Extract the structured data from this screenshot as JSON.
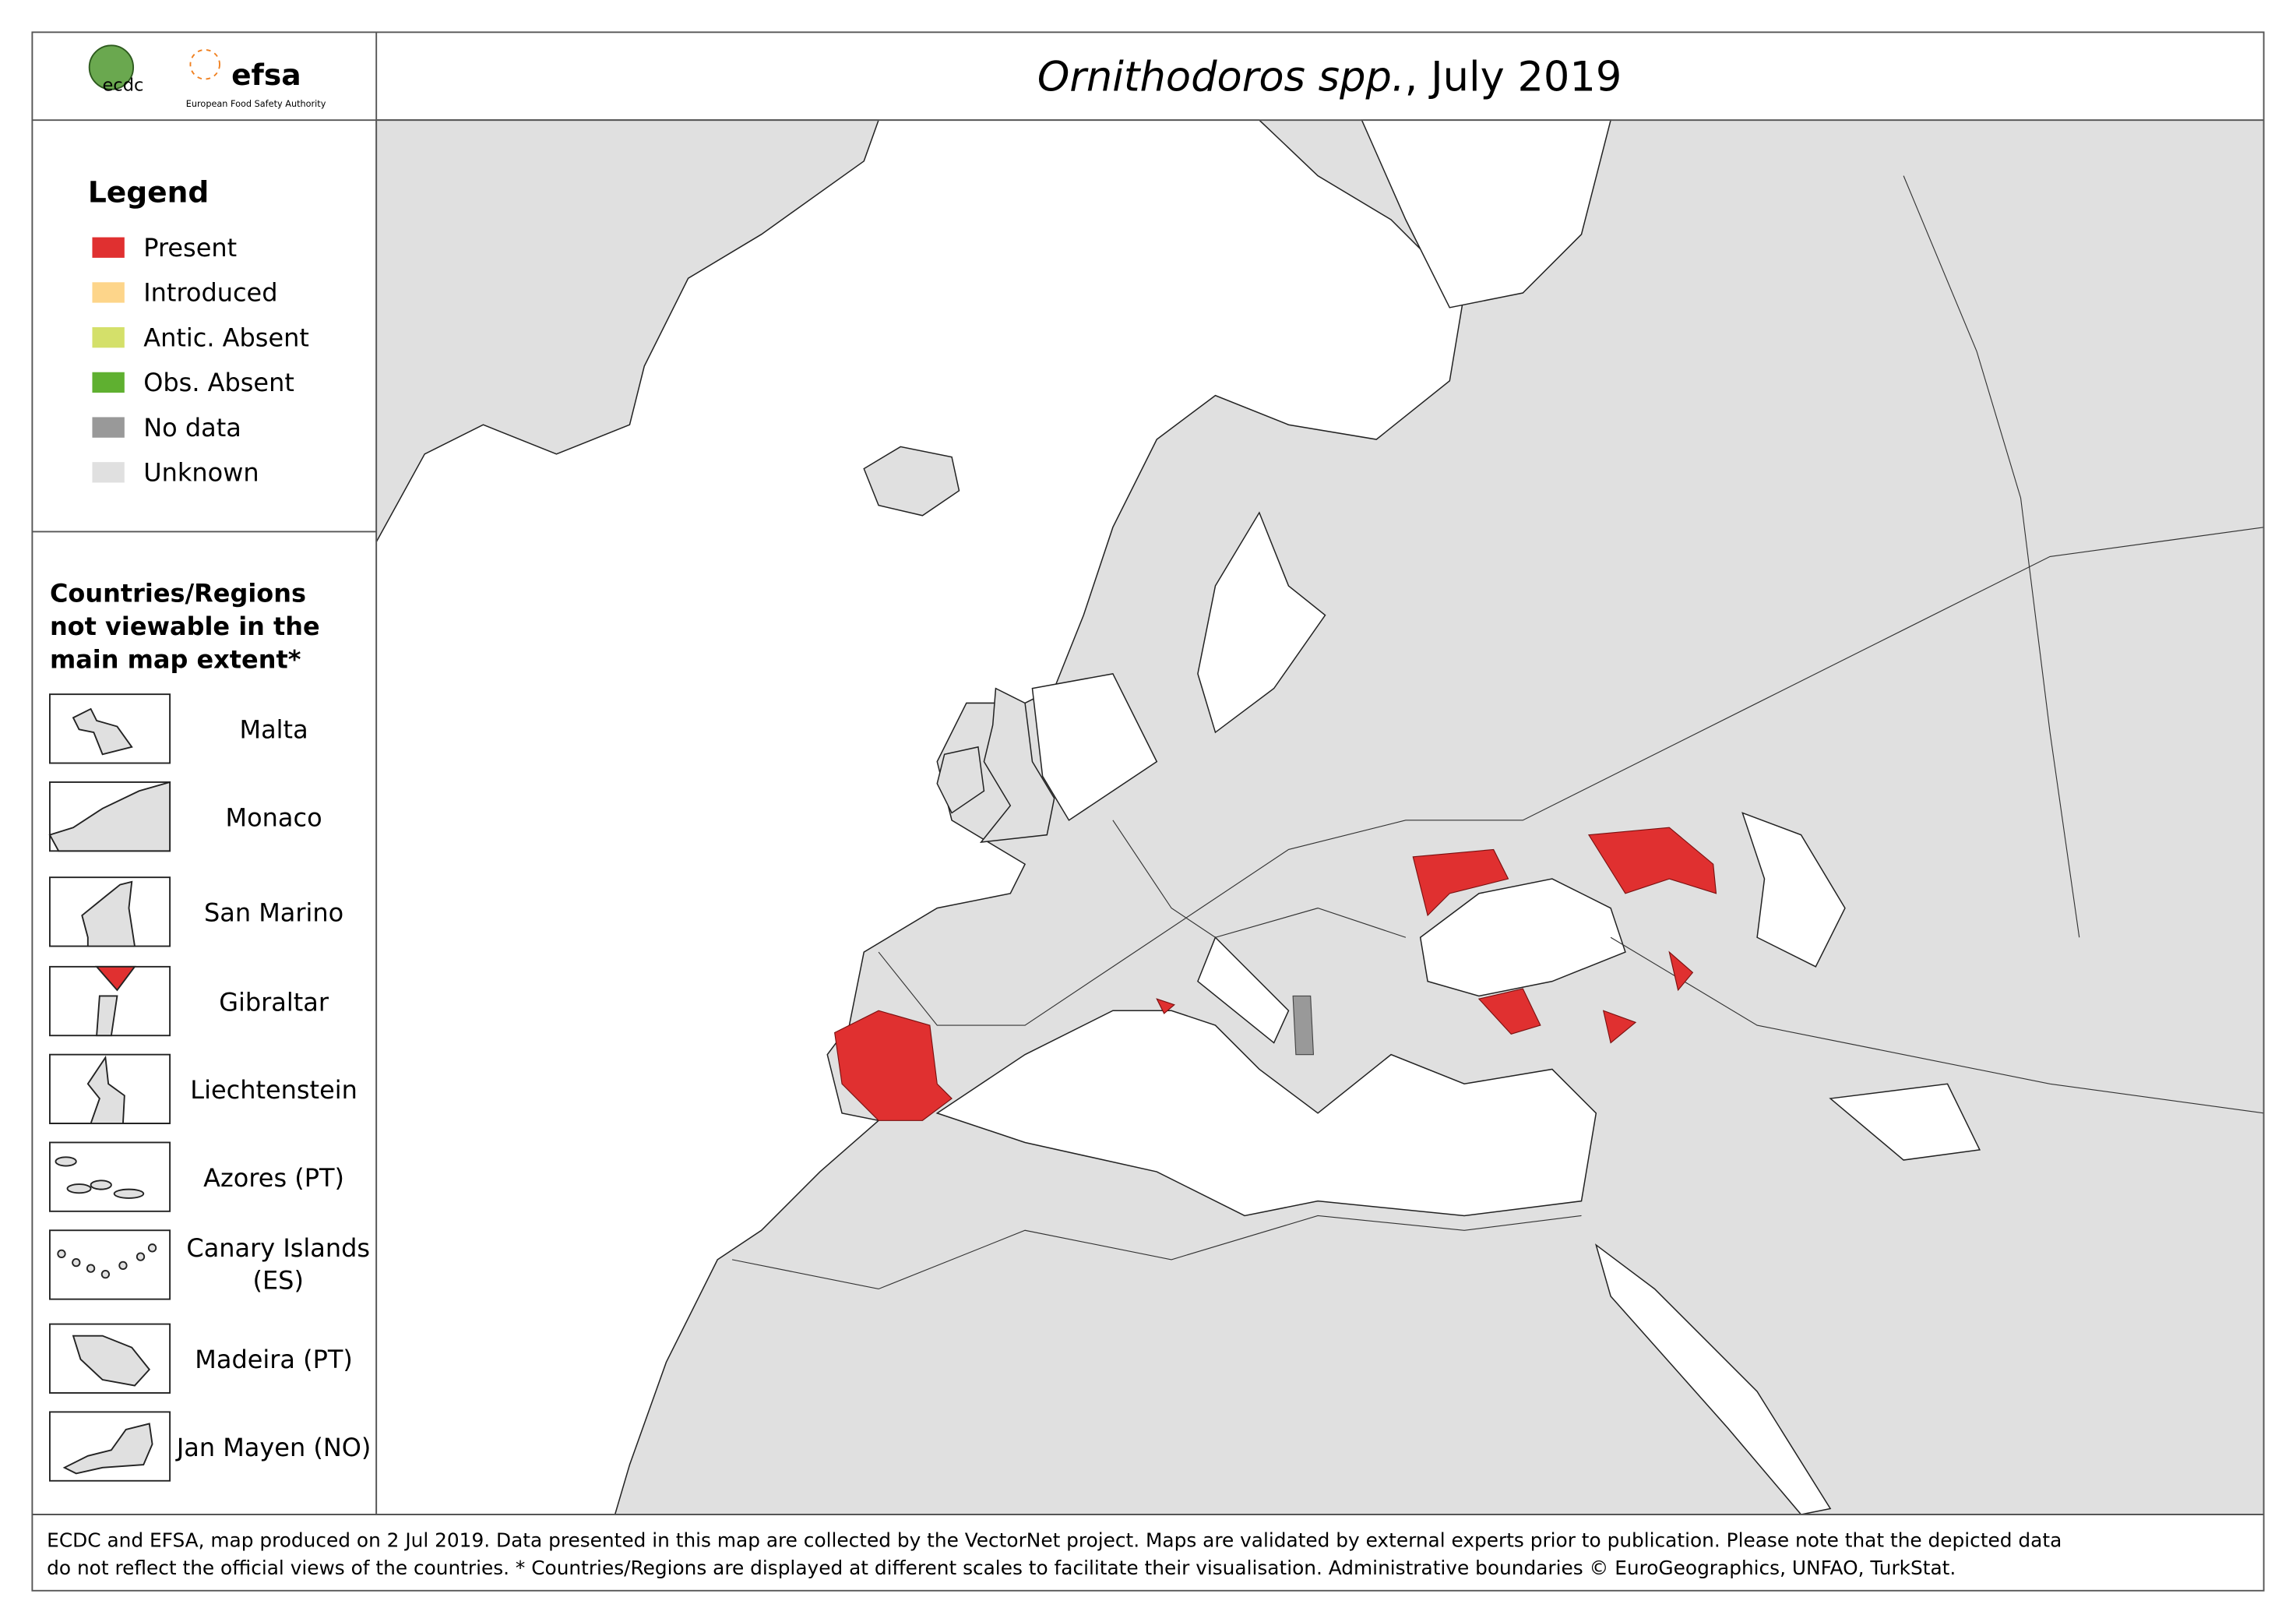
{
  "header": {
    "logos": {
      "ecdc": "ecdc",
      "efsa": "efsa",
      "efsa_full": "European Food Safety Authority"
    },
    "title": {
      "species": "Ornithodoros spp.",
      "rest": ", July 2019"
    }
  },
  "legend": {
    "title": "Legend",
    "items": [
      {
        "label": "Present",
        "color": "#e03030"
      },
      {
        "label": "Introduced",
        "color": "#fdd58a"
      },
      {
        "label": "Antic. Absent",
        "color": "#d4e06a"
      },
      {
        "label": "Obs. Absent",
        "color": "#5fb030"
      },
      {
        "label": "No data",
        "color": "#999999"
      },
      {
        "label": "Unknown",
        "color": "#e0e0e0"
      }
    ]
  },
  "insets": {
    "title": [
      "Countries/Regions",
      "not viewable in the",
      "main map extent*"
    ],
    "items": [
      {
        "label": "Malta"
      },
      {
        "label": "Monaco"
      },
      {
        "label": "San Marino"
      },
      {
        "label": "Gibraltar"
      },
      {
        "label": "Liechtenstein"
      },
      {
        "label": "Azores (PT)"
      },
      {
        "label": "Canary Islands",
        "label2": "(ES)"
      },
      {
        "label": "Madeira (PT)"
      },
      {
        "label": "Jan Mayen (NO)"
      }
    ]
  },
  "footer": [
    "ECDC and EFSA, map produced on 2 Jul 2019. Data presented in this map are collected by the VectorNet project. Maps are validated by external experts prior to publication. Please note that the depicted data",
    "do not reflect the official views of the countries. * Countries/Regions are displayed at different scales to facilitate their visualisation. Administrative boundaries © EuroGeographics, UNFAO, TurkStat."
  ]
}
